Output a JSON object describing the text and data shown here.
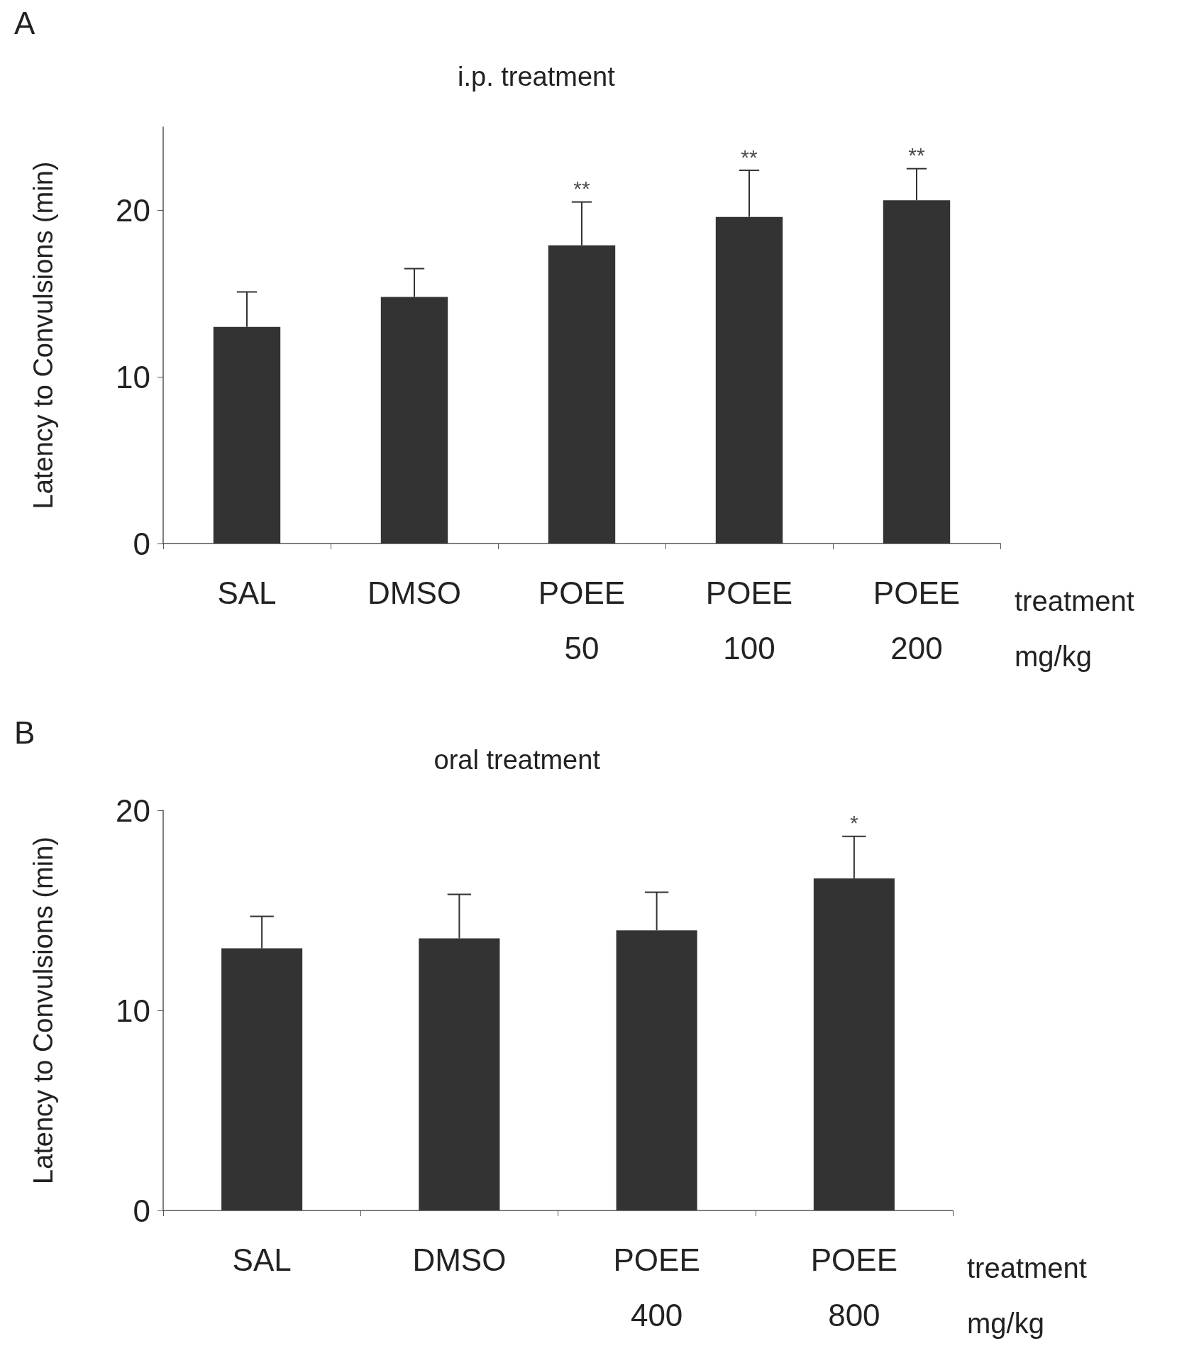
{
  "chart_data": [
    {
      "type": "bar",
      "title": "i.p. treatment",
      "ylabel": "Latency to Convulsions (min)",
      "xlabel": "treatment\nmg/kg",
      "categories": [
        "SAL",
        "DMSO",
        "POEE\n50",
        "POEE\n100",
        "POEE\n200"
      ],
      "series": [
        {
          "color": "#333333",
          "values": [
            13.0,
            14.8,
            17.9,
            19.6,
            20.6
          ],
          "errors": [
            [
              13.0,
              15.1
            ],
            [
              14.8,
              16.5
            ],
            [
              17.9,
              20.5
            ],
            [
              19.6,
              22.4
            ],
            [
              20.6,
              22.5
            ]
          ]
        }
      ],
      "ylim": [
        0,
        25
      ],
      "yticks": [
        0,
        10,
        20
      ],
      "annotations": [
        "A",
        {
          "text": "**",
          "x": "POEE\n50",
          "y": 20.5
        },
        {
          "text": "**",
          "x": "POEE\n100",
          "y": 22.4
        },
        {
          "text": "**",
          "x": "POEE\n200",
          "y": 22.5
        }
      ]
    },
    {
      "type": "bar",
      "title": "oral treatment",
      "ylabel": "Latency to Convulsions (min)",
      "xlabel": "treatment\nmg/kg",
      "categories": [
        "SAL",
        "DMSO",
        "POEE\n400",
        "POEE\n800"
      ],
      "series": [
        {
          "color": "#333333",
          "values": [
            13.1,
            13.6,
            14.0,
            16.6
          ],
          "errors": [
            [
              13.1,
              14.7
            ],
            [
              13.6,
              15.8
            ],
            [
              14.0,
              15.9
            ],
            [
              16.6,
              18.7
            ]
          ]
        }
      ],
      "ylim": [
        0,
        20
      ],
      "yticks": [
        0,
        10,
        20
      ],
      "annotations": [
        "B",
        {
          "text": "*",
          "x": "POEE\n800",
          "y": 18.7
        }
      ]
    }
  ]
}
